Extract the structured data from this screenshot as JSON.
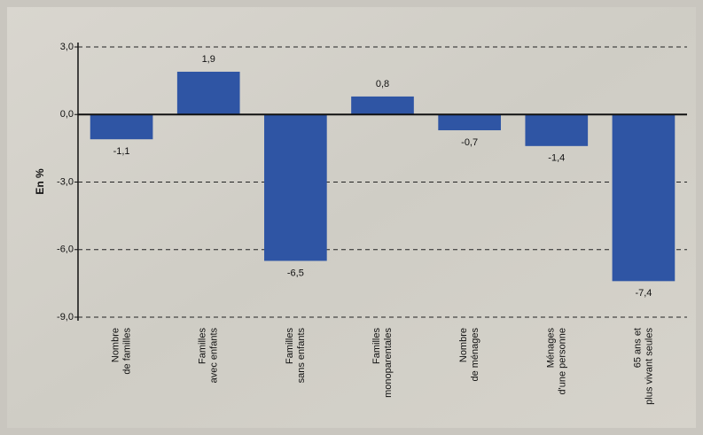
{
  "chart_data": {
    "type": "bar",
    "y_label": "En %",
    "categories": [
      "Nombre de familles",
      "Familles avec enfants",
      "Familles sans enfants",
      "Familles monoparentales",
      "Nombre de ménages",
      "Ménages d'une personne",
      "65 ans et plus vivant seules"
    ],
    "values": [
      -1.1,
      1.9,
      -6.5,
      0.8,
      -0.7,
      -1.4,
      -7.4
    ],
    "value_labels": [
      "-1,1",
      "1,9",
      "-6,5",
      "0,8",
      "-0,7",
      "-1,4",
      "-7,4"
    ],
    "color": "#2f55a4",
    "ylim": [
      -9,
      3
    ],
    "yticks": [
      {
        "value": -9,
        "label": "-9,0"
      },
      {
        "value": -6,
        "label": "-6,0"
      },
      {
        "value": -3,
        "label": "-3,0"
      },
      {
        "value": 0,
        "label": "0,0"
      },
      {
        "value": 3,
        "label": "3,0"
      }
    ],
    "grid": true
  }
}
